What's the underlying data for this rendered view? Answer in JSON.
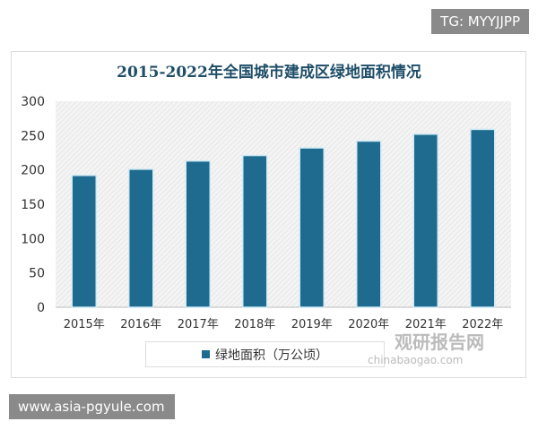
{
  "badge_top": "TG: MYYJJPP",
  "badge_bottom": "www.asia-pgyule.com",
  "watermark": {
    "name": "观研报告网",
    "url": "chinabaogao.com"
  },
  "chart_data": {
    "type": "bar",
    "title": "2015-2022年全国城市建成区绿地面积情况",
    "categories": [
      "2015年",
      "2016年",
      "2017年",
      "2018年",
      "2019年",
      "2020年",
      "2021年",
      "2022年"
    ],
    "series": [
      {
        "name": "绿地面积（万公顷）",
        "values": [
          192,
          201,
          213,
          221,
          232,
          242,
          252,
          259
        ],
        "color": "#1e6b8f"
      }
    ],
    "ylim": [
      0,
      300
    ],
    "yticks": [
      0,
      50,
      100,
      150,
      200,
      250,
      300
    ],
    "xlabel": "",
    "ylabel": "",
    "legend": "bottom"
  }
}
